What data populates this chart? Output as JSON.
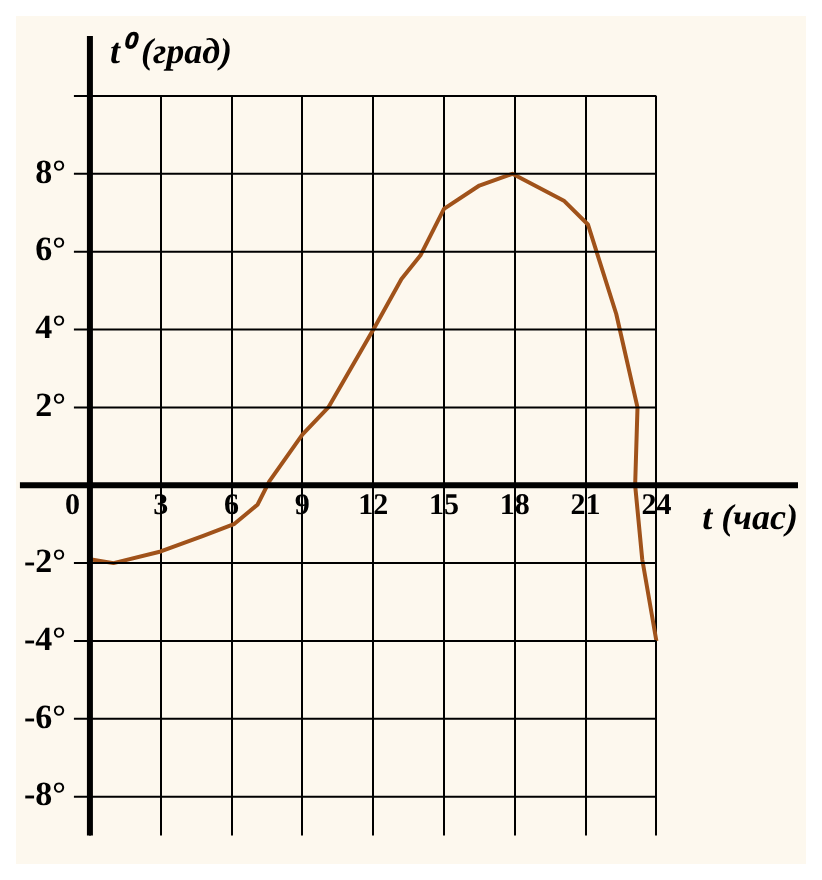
{
  "chart_data": {
    "type": "line",
    "xlabel": "t (час)",
    "ylabel": "t⁰ (град)",
    "x": [
      0,
      1,
      3,
      4.8,
      6.1,
      7.1,
      7.6,
      9,
      10.1,
      12.1,
      13.2,
      14,
      15,
      16.5,
      17.9,
      20.1,
      21.1,
      22.3,
      23.2,
      23.1,
      23.4,
      24
    ],
    "series": [
      {
        "color": "#a0521a",
        "values": [
          -1.9,
          -2,
          -1.7,
          -1.3,
          -1,
          -0.5,
          0.1,
          1.3,
          2,
          4.1,
          5.3,
          5.9,
          7.1,
          7.7,
          8,
          7.3,
          6.7,
          4.4,
          2,
          0,
          -1.9,
          -4
        ]
      }
    ],
    "xlim": [
      0,
      30
    ],
    "xticks": [
      0,
      3,
      6,
      9,
      12,
      15,
      18,
      21,
      24
    ],
    "ylim": [
      -9,
      10
    ],
    "yticks": [
      {
        "value": -8,
        "label": "-8°"
      },
      {
        "value": -6,
        "label": "-6°"
      },
      {
        "value": -4,
        "label": "-4°"
      },
      {
        "value": -2,
        "label": "-2°"
      },
      {
        "value": 0,
        "label": null
      },
      {
        "value": 2,
        "label": "2°"
      },
      {
        "value": 4,
        "label": "4°"
      },
      {
        "value": 6,
        "label": "6°"
      },
      {
        "value": 8,
        "label": "8°"
      },
      {
        "value": 10,
        "label": null
      }
    ],
    "grid": true,
    "marker": "none",
    "line_style": "solid",
    "legend": false
  }
}
